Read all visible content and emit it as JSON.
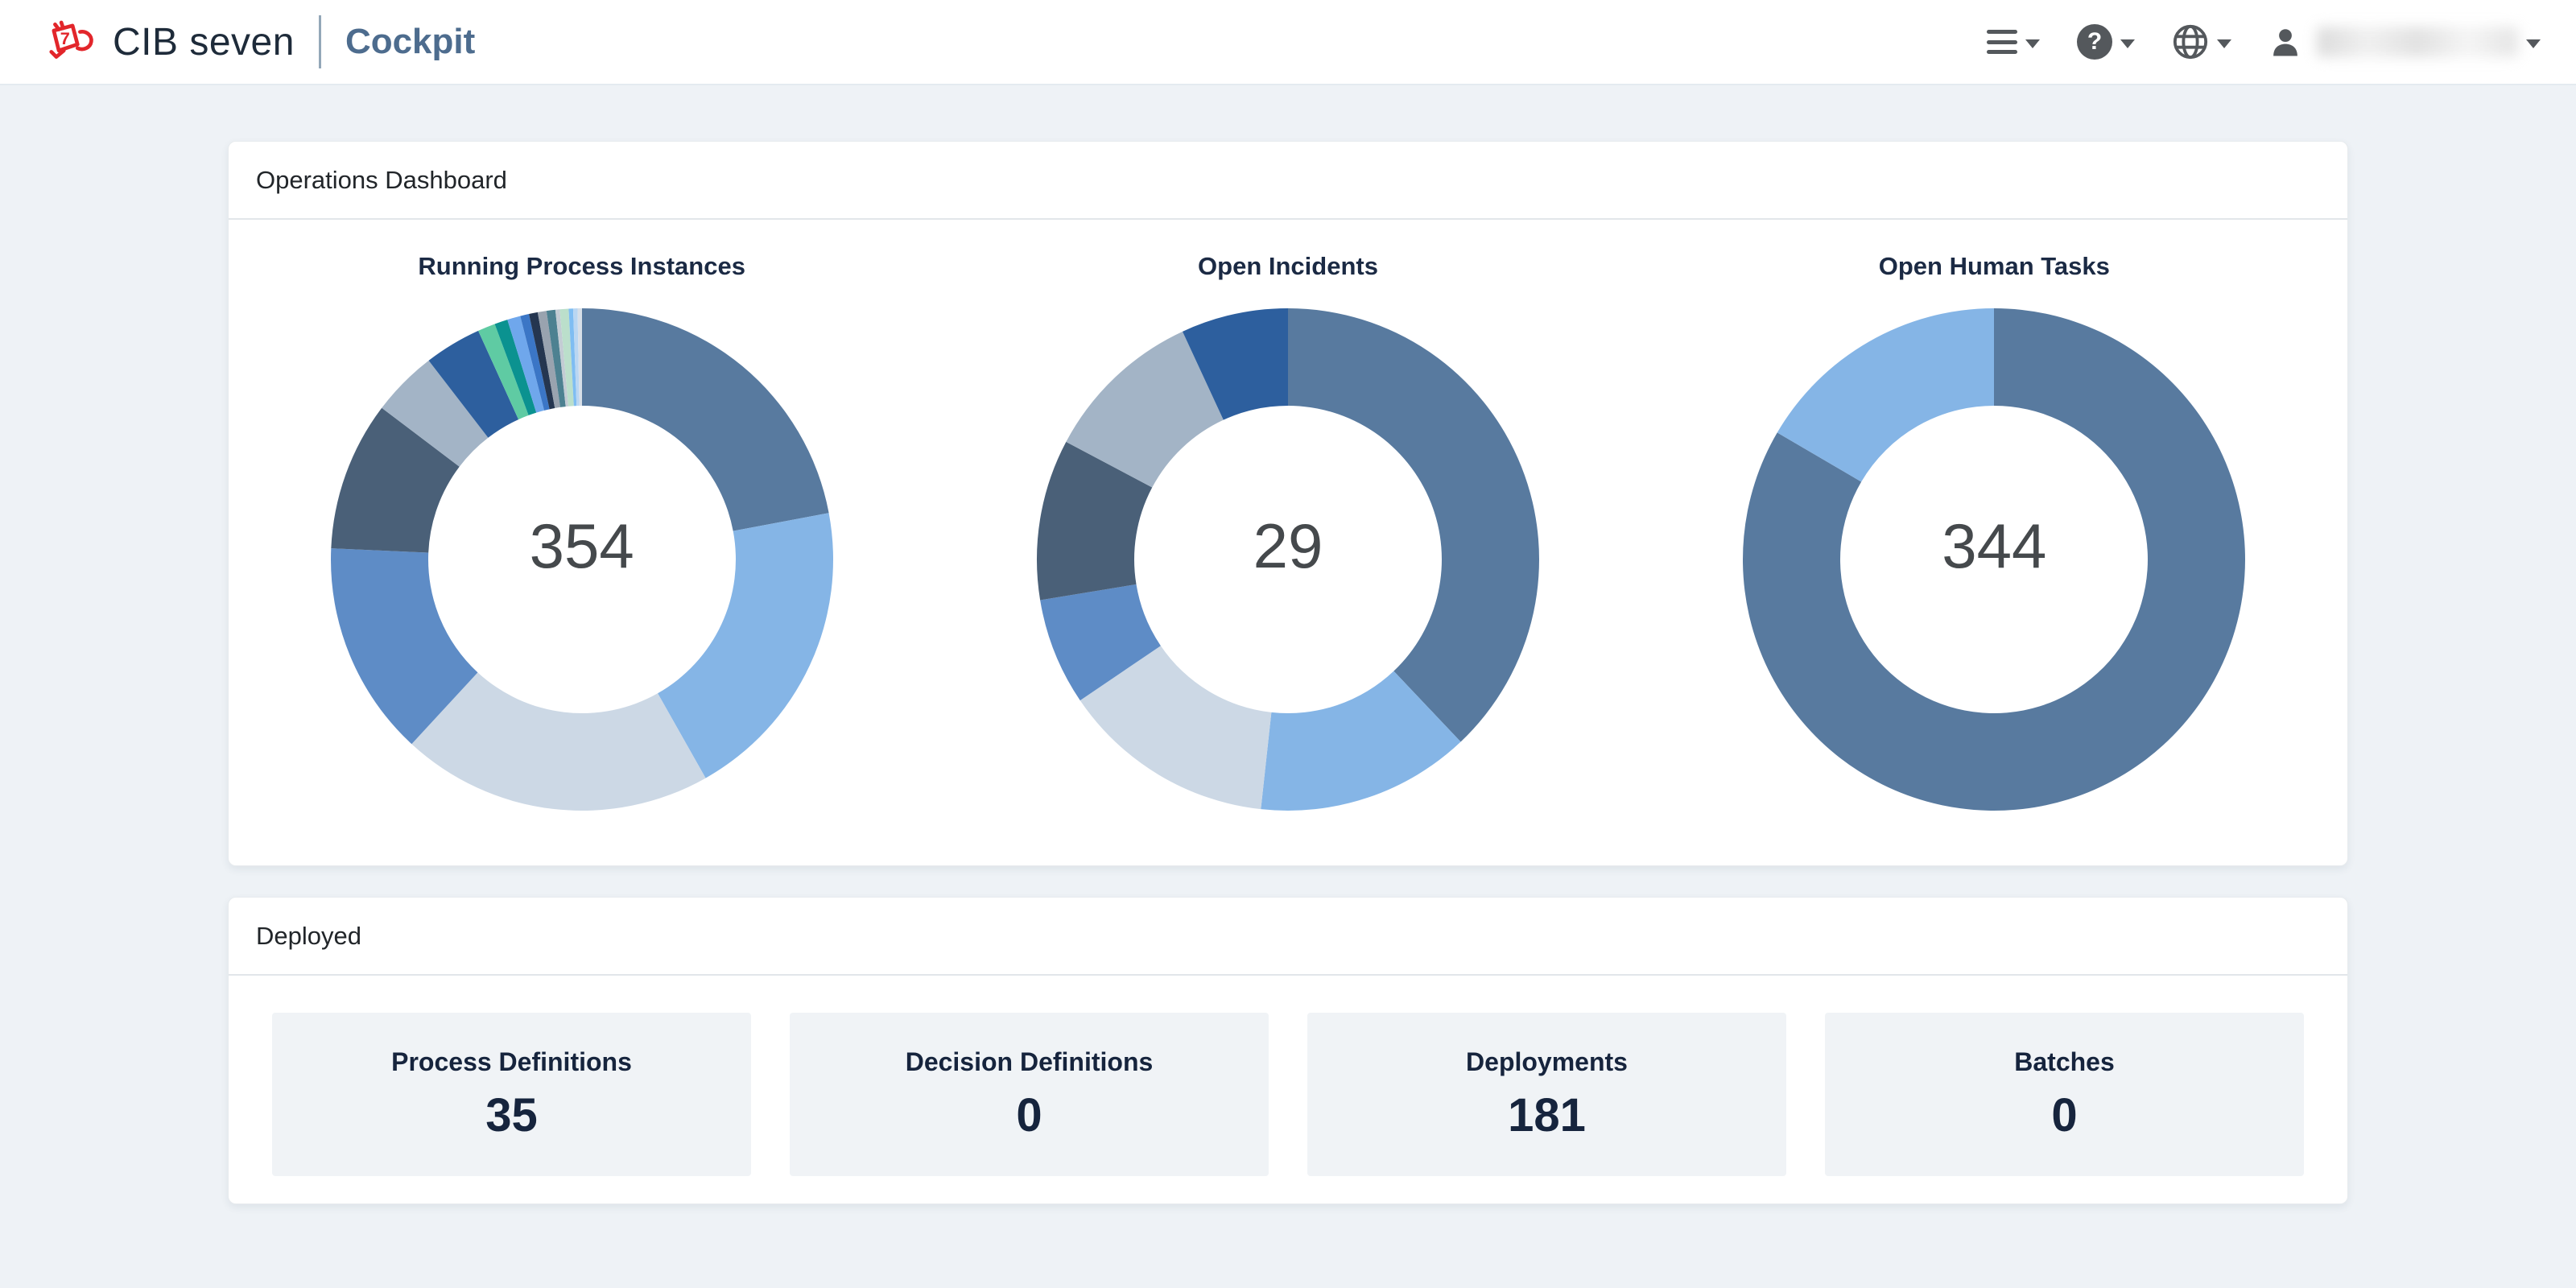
{
  "navbar": {
    "brand": "CIB seven",
    "app_title": "Cockpit",
    "help_glyph": "?",
    "icon_names": [
      "hamburger-menu-icon",
      "help-icon",
      "globe-icon",
      "person-icon"
    ],
    "user_name_redacted": true
  },
  "colors": {
    "brand_red": "#e2262b",
    "app_title_blue": "#4d6c8e",
    "title_navy": "#1b2a44",
    "page_background": "#eef2f6",
    "card_background": "#f0f3f6",
    "donut_center_text": "#45494c"
  },
  "operations_panel": {
    "title": "Operations Dashboard"
  },
  "chart_data": [
    {
      "type": "pie",
      "variant": "donut",
      "title": "Running Process Instances",
      "total": 354,
      "legend_position": "none",
      "segments": [
        {
          "value": 78,
          "color": "#587a9f"
        },
        {
          "value": 70,
          "color": "#85b5e6"
        },
        {
          "value": 71,
          "color": "#ccd8e5"
        },
        {
          "value": 49,
          "color": "#5e8cc6"
        },
        {
          "value": 34,
          "color": "#4a6078"
        },
        {
          "value": 15,
          "color": "#a3b4c6"
        },
        {
          "value": 13,
          "color": "#2d5f9e"
        },
        {
          "value": 4,
          "color": "#5fcba3"
        },
        {
          "value": 3,
          "color": "#0b9290"
        },
        {
          "value": 3,
          "color": "#6fa7ec"
        },
        {
          "value": 2,
          "color": "#3b76c6"
        },
        {
          "value": 2,
          "color": "#253650"
        },
        {
          "value": 2,
          "color": "#99a3af"
        },
        {
          "value": 2,
          "color": "#4d8191"
        },
        {
          "value": 1,
          "color": "#c3ccd4"
        },
        {
          "value": 2,
          "color": "#bbdfcb"
        },
        {
          "value": 1,
          "color": "#7fbdf2"
        },
        {
          "value": 1,
          "color": "#b9d6f2"
        },
        {
          "value": 1,
          "color": "#d7dfe8"
        }
      ]
    },
    {
      "type": "pie",
      "variant": "donut",
      "title": "Open Incidents",
      "total": 29,
      "legend_position": "none",
      "segments": [
        {
          "value": 11,
          "color": "#587a9f"
        },
        {
          "value": 4,
          "color": "#85b5e6"
        },
        {
          "value": 4,
          "color": "#ccd8e5"
        },
        {
          "value": 2,
          "color": "#5e8cc6"
        },
        {
          "value": 3,
          "color": "#4a6078"
        },
        {
          "value": 3,
          "color": "#a3b4c6"
        },
        {
          "value": 2,
          "color": "#2d5f9e"
        }
      ]
    },
    {
      "type": "pie",
      "variant": "donut",
      "title": "Open Human Tasks",
      "total": 344,
      "legend_position": "none",
      "segments": [
        {
          "value": 287,
          "color": "#587a9f"
        },
        {
          "value": 57,
          "color": "#85b5e6"
        }
      ]
    }
  ],
  "deployed_panel": {
    "title": "Deployed",
    "cards": [
      {
        "label": "Process Definitions",
        "value": "35"
      },
      {
        "label": "Decision Definitions",
        "value": "0"
      },
      {
        "label": "Deployments",
        "value": "181"
      },
      {
        "label": "Batches",
        "value": "0"
      }
    ]
  }
}
